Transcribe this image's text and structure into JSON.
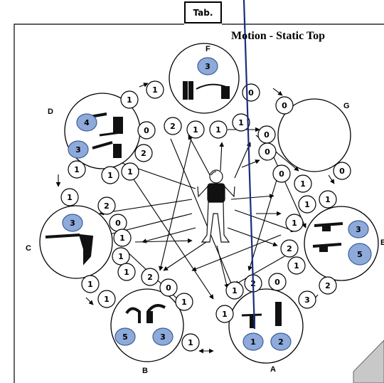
{
  "title": "Motion - Static  Top",
  "tab_label": "Tab.",
  "station_labels": {
    "F": "F",
    "G": "G",
    "D": "D",
    "C": "C",
    "E": "E",
    "B": "B",
    "A": "A"
  },
  "station_badges": {
    "F": [
      "3"
    ],
    "D": [
      "4",
      "3"
    ],
    "C": [
      "3"
    ],
    "E": [
      "3",
      "5"
    ],
    "B": [
      "5",
      "3"
    ],
    "A": [
      "1",
      "2"
    ]
  },
  "path_counters": [
    "1",
    "1",
    "0",
    "0",
    "0",
    "0",
    "0",
    "0",
    "2",
    "1",
    "1",
    "1",
    "2",
    "1",
    "1",
    "1",
    "1",
    "1",
    "0",
    "1",
    "1",
    "2",
    "0",
    "1",
    "1",
    "1",
    "2",
    "2",
    "1",
    "1",
    "0",
    "2",
    "1",
    "0",
    "2",
    "3",
    "1",
    "1",
    "1",
    "1",
    "1"
  ],
  "colors": {
    "badge_fill": "#8eaadb",
    "badge_stroke": "#3f5f96",
    "line": "#000000",
    "accent_line": "#1b2d7a",
    "page_fold": "#c8c8c8"
  }
}
